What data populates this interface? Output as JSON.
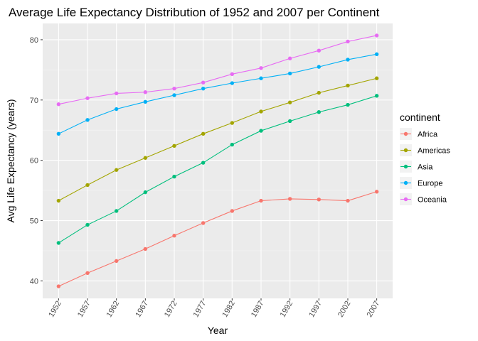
{
  "chart_data": {
    "type": "line",
    "title": "Average Life Expectancy Distribution of 1952 and 2007 per Continent",
    "xlabel": "Year",
    "ylabel": "Avg Life Expectancy (years)",
    "x": [
      1952,
      1957,
      1962,
      1967,
      1972,
      1977,
      1982,
      1987,
      1992,
      1997,
      2002,
      2007
    ],
    "x_tick_labels": [
      "1952",
      "1957",
      "1962",
      "1967",
      "1972",
      "1977",
      "1982",
      "1987",
      "1992",
      "1997",
      "2002",
      "2007"
    ],
    "xlim": [
      1949.25,
      2009.75
    ],
    "ylim": [
      37.1,
      82.7
    ],
    "y_ticks": [
      40,
      50,
      60,
      70,
      80
    ],
    "y_tick_labels": [
      "40",
      "50",
      "60",
      "70",
      "80"
    ],
    "grid": true,
    "legend": {
      "title": "continent",
      "placement": "right"
    },
    "series": [
      {
        "name": "Africa",
        "color": "#F8766D",
        "values": [
          39.1,
          41.3,
          43.3,
          45.3,
          47.5,
          49.6,
          51.6,
          53.3,
          53.6,
          53.5,
          53.3,
          54.8
        ]
      },
      {
        "name": "Americas",
        "color": "#A3A500",
        "values": [
          53.3,
          55.9,
          58.4,
          60.4,
          62.4,
          64.4,
          66.2,
          68.1,
          69.6,
          71.2,
          72.4,
          73.6
        ]
      },
      {
        "name": "Asia",
        "color": "#00BF7D",
        "values": [
          46.3,
          49.3,
          51.6,
          54.7,
          57.3,
          59.6,
          62.6,
          64.9,
          66.5,
          68.0,
          69.2,
          70.7
        ]
      },
      {
        "name": "Europe",
        "color": "#00B0F6",
        "values": [
          64.4,
          66.7,
          68.5,
          69.7,
          70.8,
          71.9,
          72.8,
          73.6,
          74.4,
          75.5,
          76.7,
          77.6
        ]
      },
      {
        "name": "Oceania",
        "color": "#E76BF3",
        "values": [
          69.3,
          70.3,
          71.1,
          71.3,
          71.9,
          72.9,
          74.3,
          75.3,
          76.9,
          78.2,
          79.7,
          80.7
        ]
      }
    ]
  }
}
